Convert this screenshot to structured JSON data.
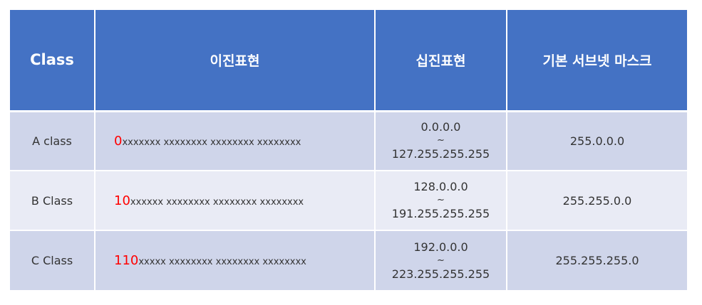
{
  "table": {
    "headers": [
      "Class",
      "이진표현",
      "십진표현",
      "기본 서브넷 마스크"
    ],
    "rows": [
      {
        "class": "A class",
        "binary_prefix": "0",
        "binary_rest": "xxxxxxx xxxxxxxx xxxxxxxx xxxxxxxx",
        "decimal_start": "0.0.0.0",
        "decimal_sep": "~",
        "decimal_end": "127.255.255.255",
        "subnet_mask": "255.0.0.0"
      },
      {
        "class": "B Class",
        "binary_prefix": "10",
        "binary_rest": "xxxxxx xxxxxxxx xxxxxxxx xxxxxxxx",
        "decimal_start": "128.0.0.0",
        "decimal_sep": "~",
        "decimal_end": "191.255.255.255",
        "subnet_mask": "255.255.0.0"
      },
      {
        "class": "C Class",
        "binary_prefix": "110",
        "binary_rest": "xxxxx xxxxxxxx xxxxxxxx xxxxxxxx",
        "decimal_start": "192.0.0.0",
        "decimal_sep": "~",
        "decimal_end": "223.255.255.255",
        "subnet_mask": "255.255.255.0"
      }
    ]
  },
  "colors": {
    "header_bg": "#4472c4",
    "row_odd_bg": "#cfd5ea",
    "row_even_bg": "#e9ebf5",
    "binary_prefix": "#ff0000"
  }
}
